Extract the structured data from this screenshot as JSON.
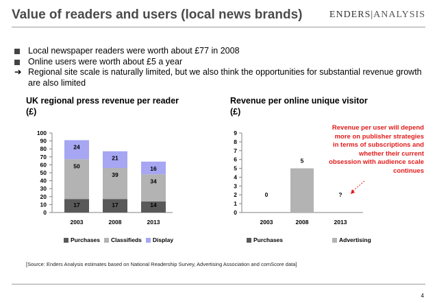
{
  "header": {
    "title": "Value of readers and users (local news brands)",
    "brand_main": "ENDERS",
    "brand_sub": "ANALYSIS"
  },
  "bullets": [
    {
      "marker": "square",
      "text": "Local newspaper readers were worth about £77 in 2008"
    },
    {
      "marker": "square",
      "text": "Online users were worth about £5 a year"
    },
    {
      "marker": "arrow",
      "arrow_glyph": "➔",
      "text": "Regional site scale is naturally limited, but we also think the opportunities for substantial revenue growth are also limited"
    }
  ],
  "chart_data": [
    {
      "type": "bar",
      "stacked": true,
      "title": "UK regional press revenue per reader",
      "unit_label": "(£)",
      "categories": [
        "2003",
        "2008",
        "2013"
      ],
      "series": [
        {
          "name": "Purchases",
          "values": [
            17,
            17,
            14
          ],
          "color": "#595959"
        },
        {
          "name": "Classifieds",
          "values": [
            50,
            39,
            34
          ],
          "color": "#b3b3b3"
        },
        {
          "name": "Display",
          "values": [
            24,
            21,
            16
          ],
          "color": "#a6a6f2"
        }
      ],
      "ylim": [
        0,
        100
      ],
      "yticks": [
        0,
        10,
        20,
        30,
        40,
        50,
        60,
        70,
        80,
        90,
        100
      ],
      "grid": false,
      "legend_position": "bottom"
    },
    {
      "type": "bar",
      "title": "Revenue per online unique visitor",
      "unit_label": "(£)",
      "categories": [
        "2003",
        "2008",
        "2013"
      ],
      "series": [
        {
          "name": "Purchases",
          "values": [
            0,
            0,
            0
          ],
          "color": "#595959"
        },
        {
          "name": "Advertising",
          "values": [
            0,
            5,
            null
          ],
          "color": "#b3b3b3"
        }
      ],
      "value_labels": [
        "0",
        "5",
        "?"
      ],
      "ylim": [
        0,
        9
      ],
      "yticks": [
        0,
        1,
        2,
        3,
        4,
        5,
        6,
        7,
        8,
        9
      ],
      "grid": false,
      "legend_position": "bottom"
    }
  ],
  "annotation": {
    "text": "Revenue per user will depend more on publisher strategies in terms of subscriptions and whether their current obsession with audience scale continues",
    "color": "#e01a1a"
  },
  "source": "[Source: Enders Analysis estimates based on National Readership Survey, Advertising Association and comScore data]",
  "page_number": "4"
}
